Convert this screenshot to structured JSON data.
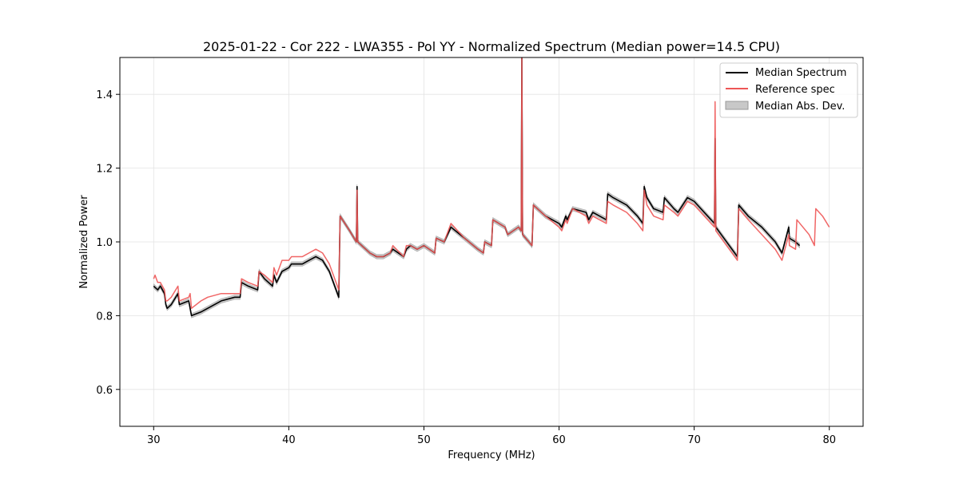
{
  "chart_data": {
    "type": "line",
    "title": "2025-01-22 - Cor 222 - LWA355 - Pol YY - Normalized Spectrum (Median power=14.5 CPU)",
    "xlabel": "Frequency (MHz)",
    "ylabel": "Normalized Power",
    "xlim": [
      27.5,
      82.5
    ],
    "ylim": [
      0.5,
      1.5
    ],
    "xticks": [
      30,
      40,
      50,
      60,
      70,
      80
    ],
    "yticks": [
      0.6,
      0.8,
      1.0,
      1.2,
      1.4
    ],
    "grid": true,
    "legend_position": "top-right",
    "series": [
      {
        "name": "Median Spectrum",
        "color": "#000000",
        "mad_band": 0.006,
        "x": [
          30.0,
          30.3,
          30.5,
          30.8,
          30.9,
          31.0,
          31.3,
          31.8,
          31.9,
          32.6,
          32.7,
          32.8,
          33.5,
          34.0,
          35.0,
          36.0,
          36.4,
          36.5,
          37.0,
          37.7,
          37.8,
          38.2,
          38.8,
          38.9,
          39.1,
          39.5,
          40.0,
          40.2,
          41.0,
          41.5,
          42.0,
          42.5,
          43.0,
          43.7,
          43.8,
          44.5,
          45.0,
          45.05,
          45.1,
          46.0,
          46.5,
          47.0,
          47.5,
          47.7,
          48.5,
          48.7,
          49.0,
          49.5,
          50.0,
          50.8,
          50.9,
          51.5,
          52.0,
          53.0,
          54.0,
          54.4,
          54.5,
          55.0,
          55.1,
          56.0,
          56.2,
          57.0,
          57.2,
          57.25,
          57.3,
          58.0,
          58.1,
          59.0,
          60.0,
          60.2,
          60.5,
          60.6,
          61.0,
          62.0,
          62.2,
          62.5,
          63.0,
          63.5,
          63.6,
          64.0,
          65.0,
          65.8,
          66.2,
          66.3,
          66.5,
          67.0,
          67.7,
          67.8,
          68.5,
          68.8,
          69.5,
          70.0,
          71.0,
          71.5,
          71.55,
          71.6,
          72.0,
          73.2,
          73.3,
          74.0,
          75.0,
          76.0,
          76.5,
          77.0,
          77.05,
          77.5,
          77.8
        ],
        "y": [
          0.88,
          0.87,
          0.88,
          0.86,
          0.83,
          0.82,
          0.83,
          0.86,
          0.83,
          0.84,
          0.82,
          0.8,
          0.81,
          0.82,
          0.84,
          0.85,
          0.85,
          0.89,
          0.88,
          0.87,
          0.92,
          0.9,
          0.88,
          0.91,
          0.89,
          0.92,
          0.93,
          0.94,
          0.94,
          0.95,
          0.96,
          0.95,
          0.92,
          0.85,
          1.07,
          1.03,
          1.0,
          1.15,
          1.0,
          0.97,
          0.96,
          0.96,
          0.97,
          0.98,
          0.96,
          0.98,
          0.99,
          0.98,
          0.99,
          0.97,
          1.01,
          1.0,
          1.04,
          1.01,
          0.98,
          0.97,
          1.0,
          0.99,
          1.06,
          1.04,
          1.02,
          1.04,
          1.03,
          1.5,
          1.02,
          0.99,
          1.1,
          1.07,
          1.05,
          1.04,
          1.07,
          1.06,
          1.09,
          1.08,
          1.06,
          1.08,
          1.07,
          1.06,
          1.13,
          1.12,
          1.1,
          1.07,
          1.05,
          1.15,
          1.12,
          1.09,
          1.08,
          1.12,
          1.09,
          1.08,
          1.12,
          1.11,
          1.07,
          1.05,
          1.28,
          1.04,
          1.02,
          0.96,
          1.1,
          1.07,
          1.04,
          1.0,
          0.97,
          1.04,
          1.01,
          1.0,
          0.99
        ]
      },
      {
        "name": "Reference spec",
        "color": "#ee5555",
        "x": [
          30.0,
          30.1,
          30.3,
          30.5,
          30.8,
          30.9,
          31.0,
          31.3,
          31.8,
          31.9,
          32.6,
          32.7,
          32.8,
          33.5,
          34.0,
          35.0,
          36.0,
          36.4,
          36.5,
          37.0,
          37.7,
          37.8,
          38.2,
          38.8,
          38.9,
          39.1,
          39.5,
          40.0,
          40.2,
          41.0,
          41.5,
          42.0,
          42.5,
          43.0,
          43.7,
          43.8,
          44.5,
          45.0,
          45.05,
          45.1,
          46.0,
          46.5,
          47.0,
          47.5,
          47.7,
          48.5,
          48.7,
          49.0,
          49.5,
          50.0,
          50.8,
          50.9,
          51.5,
          52.0,
          53.0,
          54.0,
          54.4,
          54.5,
          55.0,
          55.1,
          56.0,
          56.2,
          57.0,
          57.2,
          57.25,
          57.3,
          58.0,
          58.1,
          59.0,
          60.0,
          60.2,
          60.5,
          60.6,
          61.0,
          62.0,
          62.2,
          62.5,
          63.0,
          63.5,
          63.6,
          64.0,
          65.0,
          65.8,
          66.2,
          66.3,
          66.5,
          67.0,
          67.7,
          67.8,
          68.5,
          68.8,
          69.5,
          70.0,
          71.0,
          71.5,
          71.55,
          71.6,
          72.0,
          73.2,
          73.3,
          74.0,
          75.0,
          76.0,
          76.5,
          77.0,
          77.05,
          77.5,
          77.6,
          78.5,
          78.9,
          79.0,
          79.5,
          80.0
        ],
        "y": [
          0.9,
          0.91,
          0.89,
          0.89,
          0.87,
          0.84,
          0.84,
          0.85,
          0.88,
          0.84,
          0.85,
          0.86,
          0.82,
          0.84,
          0.85,
          0.86,
          0.86,
          0.86,
          0.9,
          0.89,
          0.88,
          0.92,
          0.91,
          0.89,
          0.93,
          0.91,
          0.95,
          0.95,
          0.96,
          0.96,
          0.97,
          0.98,
          0.97,
          0.94,
          0.87,
          1.07,
          1.03,
          1.0,
          1.14,
          1.0,
          0.97,
          0.96,
          0.96,
          0.97,
          0.99,
          0.96,
          0.99,
          0.99,
          0.98,
          0.99,
          0.97,
          1.01,
          1.0,
          1.05,
          1.01,
          0.98,
          0.97,
          1.0,
          0.99,
          1.06,
          1.04,
          1.02,
          1.04,
          1.03,
          1.5,
          1.02,
          0.99,
          1.1,
          1.07,
          1.04,
          1.03,
          1.06,
          1.05,
          1.09,
          1.07,
          1.05,
          1.07,
          1.06,
          1.05,
          1.11,
          1.1,
          1.08,
          1.05,
          1.03,
          1.14,
          1.1,
          1.07,
          1.06,
          1.1,
          1.08,
          1.07,
          1.11,
          1.1,
          1.06,
          1.04,
          1.38,
          1.03,
          1.01,
          0.95,
          1.09,
          1.06,
          1.02,
          0.98,
          0.95,
          1.02,
          0.99,
          0.98,
          1.06,
          1.02,
          0.99,
          1.09,
          1.07,
          1.04
        ]
      }
    ],
    "legend": [
      {
        "label": "Median Spectrum",
        "kind": "line",
        "color": "#000000"
      },
      {
        "label": "Reference spec",
        "kind": "line",
        "color": "#ee5555"
      },
      {
        "label": "Median Abs. Dev.",
        "kind": "patch",
        "color": "#c8c8c8"
      }
    ]
  }
}
